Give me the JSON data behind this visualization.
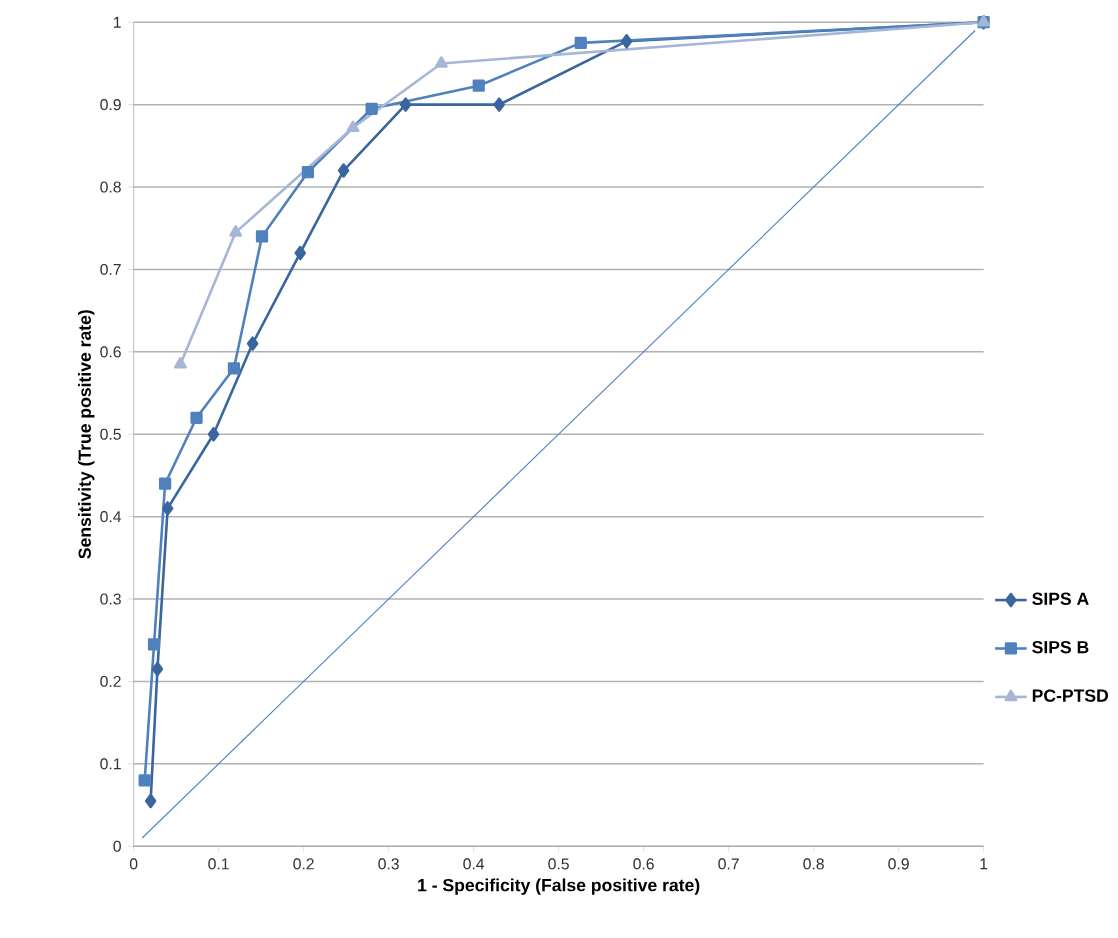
{
  "chart_data": {
    "type": "line",
    "xlabel": "1 - Specificity (False positive rate)",
    "ylabel": "Sensitivity  (True positive rate)",
    "xlim": [
      0,
      1
    ],
    "ylim": [
      0,
      1
    ],
    "xticks": [
      0,
      0.1,
      0.2,
      0.3,
      0.4,
      0.5,
      0.6,
      0.7,
      0.8,
      0.9,
      1
    ],
    "yticks": [
      0,
      0.1,
      0.2,
      0.3,
      0.4,
      0.5,
      0.6,
      0.7,
      0.8,
      0.9,
      1
    ],
    "grid": "y",
    "legend": "right",
    "line_style": "solid",
    "series": [
      {
        "name": "SIPS A",
        "color": "#3a659e",
        "marker": "diamond",
        "x": [
          0.02,
          0.028,
          0.04,
          0.094,
          0.14,
          0.196,
          0.247,
          0.32,
          0.43,
          0.58,
          1
        ],
        "values": [
          0.055,
          0.215,
          0.41,
          0.5,
          0.61,
          0.72,
          0.82,
          0.9,
          0.9,
          0.977,
          1
        ]
      },
      {
        "name": "SIPS B",
        "color": "#4f81bd",
        "marker": "square",
        "x": [
          0.013,
          0.024,
          0.037,
          0.074,
          0.118,
          0.151,
          0.205,
          0.28,
          0.406,
          0.526,
          1
        ],
        "values": [
          0.08,
          0.245,
          0.44,
          0.52,
          0.58,
          0.74,
          0.818,
          0.895,
          0.923,
          0.975,
          1
        ]
      },
      {
        "name": "PC-PTSD",
        "color": "#a5b6d6",
        "marker": "triangle",
        "x": [
          0.055,
          0.12,
          0.258,
          0.362,
          1
        ],
        "values": [
          0.585,
          0.745,
          0.872,
          0.95,
          1
        ]
      },
      {
        "color": "#4f81bd",
        "marker": "none",
        "x": [
          0.01,
          0.99
        ],
        "values": [
          0.01,
          0.99
        ]
      }
    ]
  }
}
